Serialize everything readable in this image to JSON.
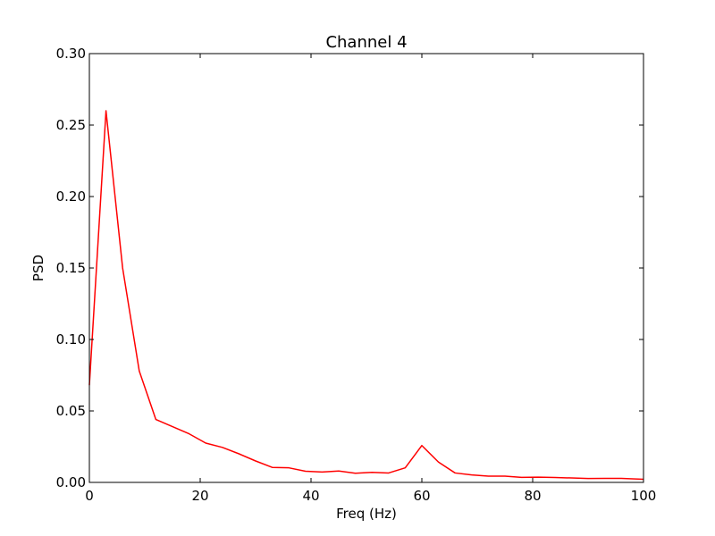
{
  "chart_data": {
    "type": "line",
    "title": "Channel 4",
    "xlabel": "Freq (Hz)",
    "ylabel": "PSD",
    "xlim": [
      0,
      100
    ],
    "ylim": [
      0.0,
      0.3
    ],
    "xticks": [
      0,
      20,
      40,
      60,
      80,
      100
    ],
    "yticks": [
      0.0,
      0.05,
      0.1,
      0.15,
      0.2,
      0.25,
      0.3
    ],
    "xtick_labels": [
      "0",
      "20",
      "40",
      "60",
      "80",
      "100"
    ],
    "ytick_labels": [
      "0.00",
      "0.05",
      "0.10",
      "0.15",
      "0.20",
      "0.25",
      "0.30"
    ],
    "grid": false,
    "series": [
      {
        "color": "#ff0000",
        "x": [
          0,
          3,
          6,
          9,
          12,
          15,
          18,
          21,
          24,
          27,
          30,
          33,
          36,
          39,
          42,
          45,
          48,
          51,
          54,
          57,
          60,
          63,
          66,
          69,
          72,
          75,
          78,
          81,
          84,
          87,
          90,
          93,
          96,
          100
        ],
        "y": [
          0.068,
          0.26,
          0.15,
          0.078,
          0.044,
          0.039,
          0.034,
          0.0275,
          0.0245,
          0.02,
          0.015,
          0.0105,
          0.0102,
          0.0078,
          0.0073,
          0.008,
          0.0064,
          0.007,
          0.0066,
          0.0102,
          0.0258,
          0.0142,
          0.0066,
          0.0052,
          0.0044,
          0.0044,
          0.0035,
          0.0037,
          0.0034,
          0.0031,
          0.0027,
          0.0028,
          0.0028,
          0.0022
        ]
      }
    ]
  }
}
